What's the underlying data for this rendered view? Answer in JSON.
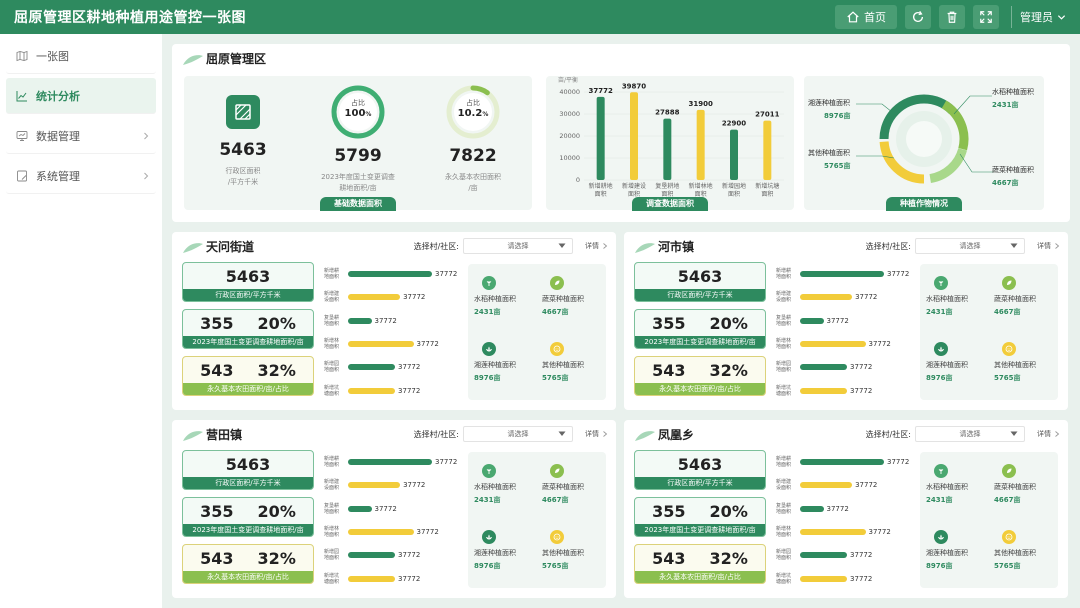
{
  "app": {
    "title": "屈原管理区耕地种植用途管控一张图"
  },
  "topbar": {
    "home_label": "首页",
    "user_label": "管理员"
  },
  "sidebar": {
    "items": [
      {
        "label": "一张图"
      },
      {
        "label": "统计分析"
      },
      {
        "label": "数据管理"
      },
      {
        "label": "系统管理"
      }
    ]
  },
  "overview": {
    "title": "屈原管理区",
    "basic": {
      "tag": "基础数据面积",
      "admin_value": "5463",
      "admin_caption_1": "行政区面积",
      "admin_caption_2": "/平方千米",
      "arable_ring_label": "占比",
      "arable_ring_value": "100",
      "arable_ring_pct": 1.0,
      "arable_value": "5799",
      "arable_caption_1": "2023年度国土变更调查",
      "arable_caption_2": "耕地面积/亩",
      "farm_ring_label": "占比",
      "farm_ring_value": "10.2",
      "farm_ring_pct": 0.102,
      "farm_value": "7822",
      "farm_caption_1": "永久基本农田面积",
      "farm_caption_2": "/亩",
      "percent_sign": "%"
    },
    "survey": {
      "tag": "调查数据面积",
      "unit": "亩/平衡"
    },
    "crops": {
      "tag": "种植作物情况",
      "labels": [
        {
          "name": "湘莲种植面积",
          "value": "8976亩"
        },
        {
          "name": "水稻种植面积",
          "value": "2431亩"
        },
        {
          "name": "其他种植面积",
          "value": "5765亩"
        },
        {
          "name": "蔬菜种植面积",
          "value": "4667亩"
        }
      ]
    }
  },
  "chart_data": {
    "type": "bar",
    "title": "",
    "ylabel": "亩/平衡",
    "categories": [
      "新增耕地面积",
      "新增建设面积",
      "复垦耕地面积",
      "新增林地面积",
      "新增园地面积",
      "新增坑塘面积"
    ],
    "values": [
      37772,
      39870,
      27888,
      31900,
      22900,
      27011
    ],
    "colors": [
      "#2e8a5f",
      "#f2cc3a",
      "#2e8a5f",
      "#f2cc3a",
      "#2e8a5f",
      "#f2cc3a"
    ],
    "yticks": [
      0,
      10000,
      20000,
      30000,
      40000
    ],
    "ylim": [
      0,
      40000
    ]
  },
  "sections": [
    {
      "title": "天问街道",
      "select_label": "选择村/社区:",
      "select_placeholder": "请选择",
      "detail": "详情",
      "kpi1": {
        "value": "5463",
        "label": "行政区面积/平方千米"
      },
      "kpi2": {
        "value": "355",
        "pct": "20%",
        "label": "2023年度国土变更调查耕地面积/亩"
      },
      "kpi3": {
        "value": "543",
        "pct": "32%",
        "label": "永久基本农田面积/亩/占比"
      },
      "bars": [
        {
          "l1": "新增耕",
          "l2": "地面积",
          "value": "37772",
          "frac": 1.0,
          "color": "#2e8a5f"
        },
        {
          "l1": "新增建",
          "l2": "设面积",
          "value": "37772",
          "frac": 0.62,
          "color": "#f2cc3a"
        },
        {
          "l1": "复垦耕",
          "l2": "地面积",
          "value": "37772",
          "frac": 0.28,
          "color": "#2e8a5f"
        },
        {
          "l1": "新增林",
          "l2": "地面积",
          "value": "37772",
          "frac": 0.78,
          "color": "#f2cc3a"
        },
        {
          "l1": "新增园",
          "l2": "地面积",
          "value": "37772",
          "frac": 0.56,
          "color": "#2e8a5f"
        },
        {
          "l1": "新增坑",
          "l2": "塘面积",
          "value": "37772",
          "frac": 0.56,
          "color": "#f2cc3a"
        }
      ],
      "crops": [
        {
          "name": "水稻种植面积",
          "value": "2431亩"
        },
        {
          "name": "蔬菜种植面积",
          "value": "4667亩"
        },
        {
          "name": "湘莲种植面积",
          "value": "8976亩"
        },
        {
          "name": "其他种植面积",
          "value": "5765亩"
        }
      ]
    },
    {
      "title": "河市镇",
      "select_label": "选择村/社区:",
      "select_placeholder": "请选择",
      "detail": "详情",
      "kpi1": {
        "value": "5463",
        "label": "行政区面积/平方千米"
      },
      "kpi2": {
        "value": "355",
        "pct": "20%",
        "label": "2023年度国土变更调查耕地面积/亩"
      },
      "kpi3": {
        "value": "543",
        "pct": "32%",
        "label": "永久基本农田面积/亩/占比"
      },
      "bars": [
        {
          "l1": "新增耕",
          "l2": "地面积",
          "value": "37772",
          "frac": 1.0,
          "color": "#2e8a5f"
        },
        {
          "l1": "新增建",
          "l2": "设面积",
          "value": "37772",
          "frac": 0.62,
          "color": "#f2cc3a"
        },
        {
          "l1": "复垦耕",
          "l2": "地面积",
          "value": "37772",
          "frac": 0.28,
          "color": "#2e8a5f"
        },
        {
          "l1": "新增林",
          "l2": "地面积",
          "value": "37772",
          "frac": 0.78,
          "color": "#f2cc3a"
        },
        {
          "l1": "新增园",
          "l2": "地面积",
          "value": "37772",
          "frac": 0.56,
          "color": "#2e8a5f"
        },
        {
          "l1": "新增坑",
          "l2": "塘面积",
          "value": "37772",
          "frac": 0.56,
          "color": "#f2cc3a"
        }
      ],
      "crops": [
        {
          "name": "水稻种植面积",
          "value": "2431亩"
        },
        {
          "name": "蔬菜种植面积",
          "value": "4667亩"
        },
        {
          "name": "湘莲种植面积",
          "value": "8976亩"
        },
        {
          "name": "其他种植面积",
          "value": "5765亩"
        }
      ]
    },
    {
      "title": "营田镇",
      "select_label": "选择村/社区:",
      "select_placeholder": "请选择",
      "detail": "详情",
      "kpi1": {
        "value": "5463",
        "label": "行政区面积/平方千米"
      },
      "kpi2": {
        "value": "355",
        "pct": "20%",
        "label": "2023年度国土变更调查耕地面积/亩"
      },
      "kpi3": {
        "value": "543",
        "pct": "32%",
        "label": "永久基本农田面积/亩/占比"
      },
      "bars": [
        {
          "l1": "新增耕",
          "l2": "地面积",
          "value": "37772",
          "frac": 1.0,
          "color": "#2e8a5f"
        },
        {
          "l1": "新增建",
          "l2": "设面积",
          "value": "37772",
          "frac": 0.62,
          "color": "#f2cc3a"
        },
        {
          "l1": "复垦耕",
          "l2": "地面积",
          "value": "37772",
          "frac": 0.28,
          "color": "#2e8a5f"
        },
        {
          "l1": "新增林",
          "l2": "地面积",
          "value": "37772",
          "frac": 0.78,
          "color": "#f2cc3a"
        },
        {
          "l1": "新增园",
          "l2": "地面积",
          "value": "37772",
          "frac": 0.56,
          "color": "#2e8a5f"
        },
        {
          "l1": "新增坑",
          "l2": "塘面积",
          "value": "37772",
          "frac": 0.56,
          "color": "#f2cc3a"
        }
      ],
      "crops": [
        {
          "name": "水稻种植面积",
          "value": "2431亩"
        },
        {
          "name": "蔬菜种植面积",
          "value": "4667亩"
        },
        {
          "name": "湘莲种植面积",
          "value": "8976亩"
        },
        {
          "name": "其他种植面积",
          "value": "5765亩"
        }
      ]
    },
    {
      "title": "凤凰乡",
      "select_label": "选择村/社区:",
      "select_placeholder": "请选择",
      "detail": "详情",
      "kpi1": {
        "value": "5463",
        "label": "行政区面积/平方千米"
      },
      "kpi2": {
        "value": "355",
        "pct": "20%",
        "label": "2023年度国土变更调查耕地面积/亩"
      },
      "kpi3": {
        "value": "543",
        "pct": "32%",
        "label": "永久基本农田面积/亩/占比"
      },
      "bars": [
        {
          "l1": "新增耕",
          "l2": "地面积",
          "value": "37772",
          "frac": 1.0,
          "color": "#2e8a5f"
        },
        {
          "l1": "新增建",
          "l2": "设面积",
          "value": "37772",
          "frac": 0.62,
          "color": "#f2cc3a"
        },
        {
          "l1": "复垦耕",
          "l2": "地面积",
          "value": "37772",
          "frac": 0.28,
          "color": "#2e8a5f"
        },
        {
          "l1": "新增林",
          "l2": "地面积",
          "value": "37772",
          "frac": 0.78,
          "color": "#f2cc3a"
        },
        {
          "l1": "新增园",
          "l2": "地面积",
          "value": "37772",
          "frac": 0.56,
          "color": "#2e8a5f"
        },
        {
          "l1": "新增坑",
          "l2": "塘面积",
          "value": "37772",
          "frac": 0.56,
          "color": "#f2cc3a"
        }
      ],
      "crops": [
        {
          "name": "水稻种植面积",
          "value": "2431亩"
        },
        {
          "name": "蔬菜种植面积",
          "value": "4667亩"
        },
        {
          "name": "湘莲种植面积",
          "value": "8976亩"
        },
        {
          "name": "其他种植面积",
          "value": "5765亩"
        }
      ]
    }
  ],
  "colors": {
    "primary": "#2e8a5f",
    "yellow": "#f2cc3a",
    "lightgreen": "#8bbf4f",
    "bg": "#e9f1ed"
  }
}
